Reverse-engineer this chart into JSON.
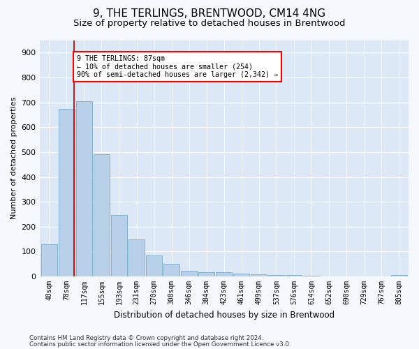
{
  "title": "9, THE TERLINGS, BRENTWOOD, CM14 4NG",
  "subtitle": "Size of property relative to detached houses in Brentwood",
  "xlabel": "Distribution of detached houses by size in Brentwood",
  "ylabel": "Number of detached properties",
  "footnote1": "Contains HM Land Registry data © Crown copyright and database right 2024.",
  "footnote2": "Contains public sector information licensed under the Open Government Licence v3.0.",
  "bar_labels": [
    "40sqm",
    "78sqm",
    "117sqm",
    "155sqm",
    "193sqm",
    "231sqm",
    "270sqm",
    "308sqm",
    "346sqm",
    "384sqm",
    "423sqm",
    "461sqm",
    "499sqm",
    "537sqm",
    "576sqm",
    "614sqm",
    "652sqm",
    "690sqm",
    "729sqm",
    "767sqm",
    "805sqm"
  ],
  "bar_values": [
    130,
    675,
    705,
    490,
    248,
    148,
    85,
    50,
    22,
    17,
    16,
    10,
    8,
    5,
    5,
    2,
    1,
    1,
    1,
    0,
    7
  ],
  "bar_color": "#b8d0e8",
  "bar_edgecolor": "#7aaacf",
  "property_label": "9 THE TERLINGS: 87sqm",
  "annotation_line1": "← 10% of detached houses are smaller (254)",
  "annotation_line2": "90% of semi-detached houses are larger (2,342) →",
  "line_color": "#cc0000",
  "ylim": [
    0,
    950
  ],
  "yticks": [
    0,
    100,
    200,
    300,
    400,
    500,
    600,
    700,
    800,
    900
  ],
  "background_color": "#dce8f5",
  "fig_background_color": "#f5f8fc",
  "grid_color": "#ffffff",
  "title_fontsize": 11,
  "subtitle_fontsize": 9.5
}
